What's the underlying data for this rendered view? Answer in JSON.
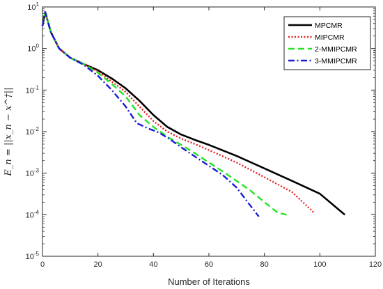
{
  "chart_data": {
    "type": "line",
    "xlabel": "Number of Iterations",
    "ylabel": "E_n = ||x_n − x^†||",
    "xlim": [
      0,
      120
    ],
    "ylim": [
      1e-05,
      10
    ],
    "yscale": "log",
    "x_ticks": [
      "0",
      "20",
      "40",
      "60",
      "80",
      "100",
      "120"
    ],
    "y_ticks": [
      {
        "base": "10",
        "exp": "1"
      },
      {
        "base": "10",
        "exp": "0"
      },
      {
        "base": "10",
        "exp": "-1"
      },
      {
        "base": "10",
        "exp": "-2"
      },
      {
        "base": "10",
        "exp": "-3"
      },
      {
        "base": "10",
        "exp": "-4"
      },
      {
        "base": "10",
        "exp": "-5"
      }
    ],
    "grid": false,
    "legend_position": "top-right",
    "series": [
      {
        "name": "MPCMR",
        "color": "#000000",
        "style": "solid",
        "x": [
          0,
          1,
          3,
          6,
          10,
          15,
          20,
          25,
          30,
          35,
          40,
          45,
          50,
          55,
          60,
          70,
          80,
          90,
          100,
          109
        ],
        "y": [
          3.5,
          7.5,
          2.5,
          1.0,
          0.6,
          0.42,
          0.3,
          0.19,
          0.11,
          0.055,
          0.025,
          0.013,
          0.0085,
          0.0063,
          0.0048,
          0.0026,
          0.0013,
          0.00065,
          0.00032,
          0.0001
        ]
      },
      {
        "name": "MIPCMR",
        "color": "#e81f1f",
        "style": "dotted",
        "x": [
          0,
          1,
          3,
          6,
          10,
          15,
          20,
          25,
          30,
          35,
          40,
          45,
          50,
          55,
          60,
          70,
          80,
          90,
          98
        ],
        "y": [
          3.5,
          7.5,
          2.5,
          1.0,
          0.6,
          0.42,
          0.28,
          0.16,
          0.09,
          0.04,
          0.018,
          0.01,
          0.0068,
          0.005,
          0.0036,
          0.0018,
          0.0008,
          0.00035,
          0.00011
        ]
      },
      {
        "name": "2-MMIPCMR",
        "color": "#22e322",
        "style": "dashed",
        "x": [
          0,
          1,
          3,
          6,
          10,
          15,
          20,
          25,
          30,
          35,
          40,
          45,
          50,
          55,
          60,
          65,
          70,
          75,
          80,
          85,
          88
        ],
        "y": [
          3.5,
          7.5,
          2.5,
          1.0,
          0.6,
          0.42,
          0.26,
          0.14,
          0.07,
          0.025,
          0.013,
          0.0075,
          0.0048,
          0.003,
          0.0018,
          0.0011,
          0.00065,
          0.00038,
          0.0002,
          0.00011,
          0.0001
        ]
      },
      {
        "name": "3-MMIPCMR",
        "color": "#1a1ad6",
        "style": "dashdot",
        "x": [
          0,
          1,
          3,
          6,
          10,
          15,
          20,
          25,
          30,
          34,
          38,
          42,
          46,
          50,
          55,
          60,
          65,
          70,
          74,
          78
        ],
        "y": [
          3.5,
          7.5,
          2.5,
          1.0,
          0.6,
          0.4,
          0.22,
          0.1,
          0.04,
          0.016,
          0.012,
          0.0095,
          0.0065,
          0.0042,
          0.0025,
          0.0015,
          0.0009,
          0.00045,
          0.0002,
          9e-05
        ]
      }
    ]
  }
}
